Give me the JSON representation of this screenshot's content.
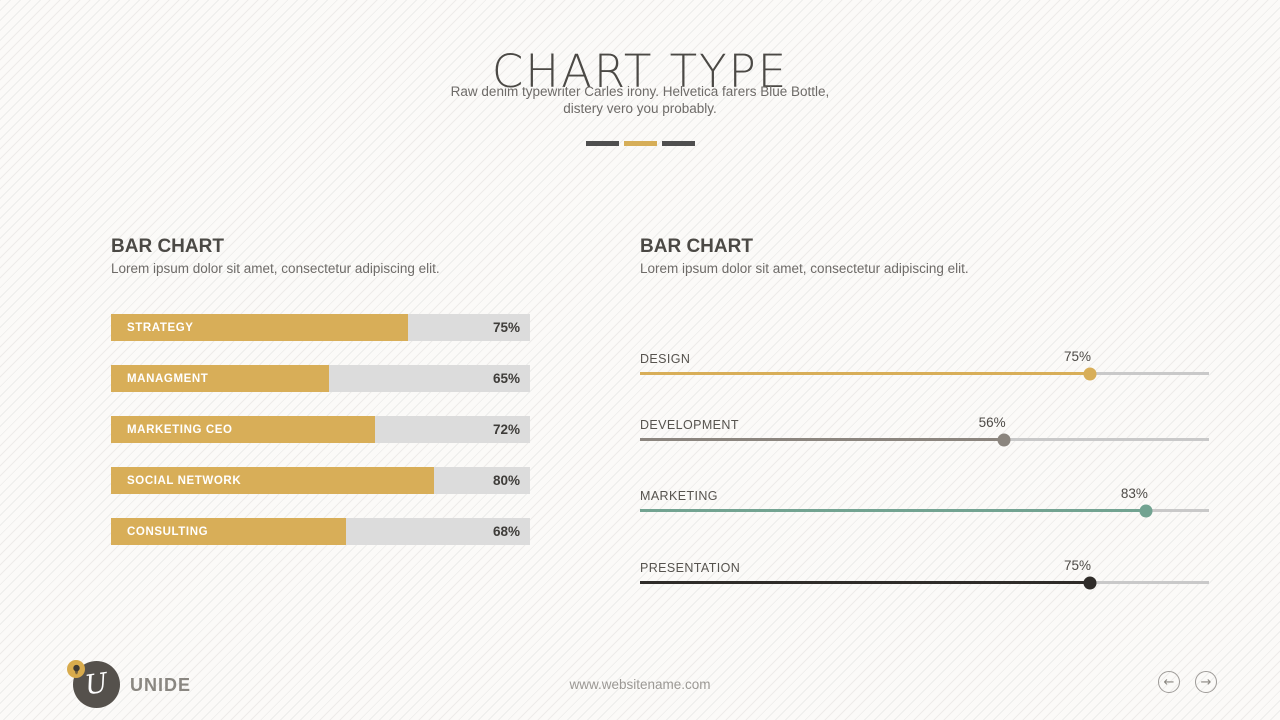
{
  "slide": {
    "background": "#fbfaf8",
    "stripe_color": "#edecea"
  },
  "header": {
    "title": "CHART TYPE",
    "subtitle_line1": "Raw denim typewriter Carles irony. Helvetica farers Blue Bottle,",
    "subtitle_line2": "distery vero you probably.",
    "divider_colors": [
      "#4f4f4f",
      "#d6ae58",
      "#4f4f4f"
    ]
  },
  "left_chart": {
    "heading": "BAR CHART",
    "description": "Lorem ipsum dolor sit amet, consectetur adipiscing elit.",
    "fill_color": "#d8ae58",
    "track_color": "#dcdcdc",
    "bars": [
      {
        "label": "STRATEGY",
        "value": "75%",
        "fill_pct": 71
      },
      {
        "label": "MANAGMENT",
        "value": "65%",
        "fill_pct": 52
      },
      {
        "label": "MARKETING CEO",
        "value": "72%",
        "fill_pct": 63
      },
      {
        "label": "SOCIAL NETWORK",
        "value": "80%",
        "fill_pct": 77
      },
      {
        "label": "CONSULTING",
        "value": "68%",
        "fill_pct": 56
      }
    ]
  },
  "right_chart": {
    "heading": "BAR CHART",
    "description": "Lorem ipsum dolor sit amet, consectetur adipiscing elit.",
    "track_color": "#c9c9c9",
    "sliders": [
      {
        "label": "DESIGN",
        "value": "75%",
        "dot_pct": 79,
        "color": "#d8ae58"
      },
      {
        "label": "DEVELOPMENT",
        "value": "56%",
        "dot_pct": 64,
        "color": "#8b857e"
      },
      {
        "label": "MARKETING",
        "value": "83%",
        "dot_pct": 89,
        "color": "#72a391"
      },
      {
        "label": "PRESENTATION",
        "value": "75%",
        "dot_pct": 79,
        "color": "#2f2c29"
      }
    ]
  },
  "footer": {
    "brand_name": "UNIDE",
    "logo_letter": "U",
    "website": "www.websitename.com",
    "prev_icon": "←",
    "next_icon": "→",
    "logo_bg": "#55514c",
    "badge_bg": "#d8ab4c"
  },
  "chart_data": [
    {
      "type": "bar",
      "orientation": "horizontal",
      "title": "BAR CHART",
      "subtitle": "Lorem ipsum dolor sit amet, consectetur adipiscing elit.",
      "categories": [
        "STRATEGY",
        "MANAGMENT",
        "MARKETING CEO",
        "SOCIAL NETWORK",
        "CONSULTING"
      ],
      "values": [
        75,
        65,
        72,
        80,
        68
      ],
      "unit": "%",
      "xlim": [
        0,
        100
      ],
      "data_labels": true,
      "bar_color": "#d8ae58"
    },
    {
      "type": "bar",
      "style": "slider",
      "orientation": "horizontal",
      "title": "BAR CHART",
      "subtitle": "Lorem ipsum dolor sit amet, consectetur adipiscing elit.",
      "categories": [
        "DESIGN",
        "DEVELOPMENT",
        "MARKETING",
        "PRESENTATION"
      ],
      "values": [
        75,
        56,
        83,
        75
      ],
      "unit": "%",
      "xlim": [
        0,
        100
      ],
      "data_labels": true,
      "series_colors": [
        "#d8ae58",
        "#8b857e",
        "#72a391",
        "#2f2c29"
      ]
    }
  ]
}
